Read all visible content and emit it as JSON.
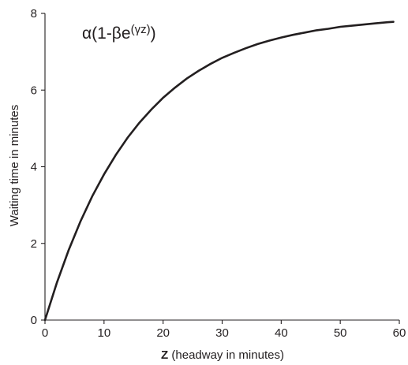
{
  "chart_data": {
    "type": "line",
    "formula": {
      "main": "α(1-βe",
      "superscript": "(γz)",
      "close": ")"
    },
    "xlabel": {
      "bold": "Z",
      "rest": " (headway in minutes)"
    },
    "ylabel": "Waiting time in minutes",
    "xlim": [
      0,
      60
    ],
    "ylim": [
      0,
      8
    ],
    "x_ticks": [
      0,
      10,
      20,
      30,
      40,
      50,
      60
    ],
    "y_ticks": [
      0,
      2,
      4,
      6,
      8
    ],
    "grid": false,
    "series": [
      {
        "x": [
          0,
          2,
          4,
          6,
          8,
          10,
          12,
          14,
          16,
          18,
          20,
          22,
          24,
          26,
          28,
          30,
          32,
          34,
          36,
          38,
          40,
          42,
          44,
          46,
          48,
          50,
          52,
          54,
          56,
          58,
          59
        ],
        "y": [
          0,
          0.97,
          1.82,
          2.57,
          3.23,
          3.8,
          4.31,
          4.76,
          5.15,
          5.49,
          5.8,
          6.06,
          6.3,
          6.5,
          6.68,
          6.84,
          6.97,
          7.09,
          7.2,
          7.29,
          7.37,
          7.44,
          7.5,
          7.56,
          7.6,
          7.65,
          7.68,
          7.71,
          7.74,
          7.77,
          7.78
        ]
      }
    ]
  }
}
